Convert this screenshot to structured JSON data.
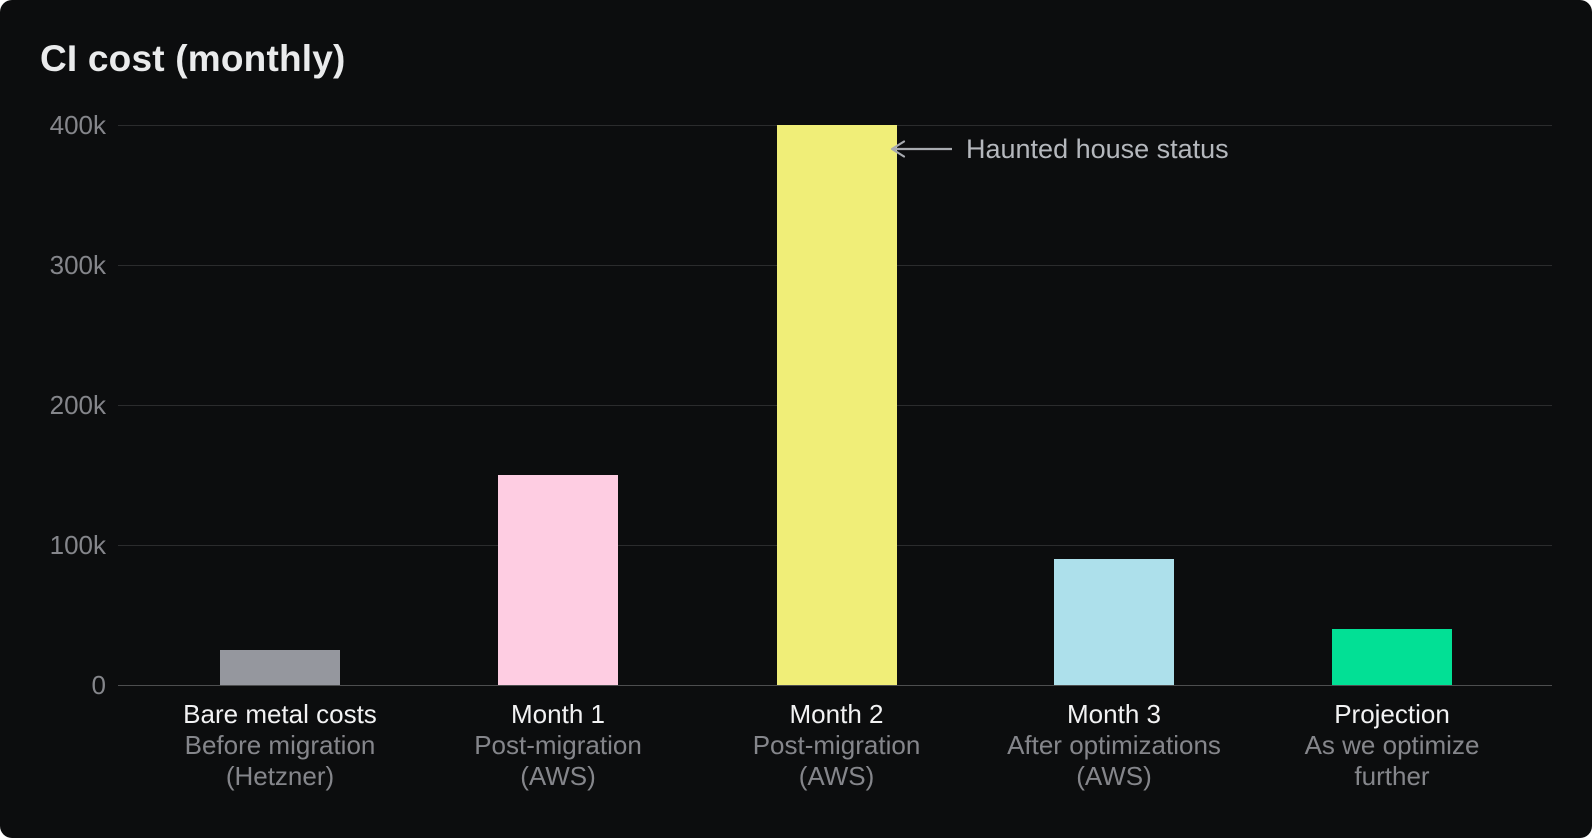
{
  "title": "CI cost (monthly)",
  "annotation": {
    "text": "Haunted house status",
    "icon": "left-arrow-icon",
    "points_to": "Month 2"
  },
  "colors": {
    "card_background": "#0c0d0e",
    "title_text": "#eaebec",
    "axis_tick_text": "#85868b",
    "category_label_text": "#f2f2f3",
    "category_sublabel_text": "#85868b",
    "annotation_text": "#b5b8bd",
    "gridline": "rgba(255,255,255,0.13)",
    "baseline": "rgba(255,255,255,0.27)"
  },
  "chart_data": {
    "type": "bar",
    "title": "CI cost (monthly)",
    "xlabel": "",
    "ylabel": "",
    "ylim": [
      0,
      400000
    ],
    "grid": "horizontal-only",
    "legend": false,
    "categories": [
      "Bare metal costs",
      "Month 1",
      "Month 2",
      "Month 3",
      "Projection"
    ],
    "category_sublabels": [
      [
        "Before migration",
        "(Hetzner)"
      ],
      [
        "Post-migration",
        "(AWS)"
      ],
      [
        "Post-migration",
        "(AWS)"
      ],
      [
        "After optimizations",
        "(AWS)"
      ],
      [
        "As we optimize",
        "further"
      ]
    ],
    "values": [
      25000,
      150000,
      400000,
      90000,
      40000
    ],
    "value_labels": [
      "25k",
      "150k",
      "400k",
      "90k",
      "40k"
    ],
    "bar_colors": [
      "#95979e",
      "#fecde2",
      "#f0ee78",
      "#ade0eb",
      "#02e095"
    ],
    "yticks": [
      {
        "label": "0",
        "value": 0
      },
      {
        "label": "100k",
        "value": 100000
      },
      {
        "label": "200k",
        "value": 200000
      },
      {
        "label": "300k",
        "value": 300000
      },
      {
        "label": "400k",
        "value": 400000
      }
    ],
    "annotation": {
      "text": "Haunted house status",
      "arrow_direction": "left",
      "points_to_category": "Month 2",
      "points_to_value": 400000
    }
  }
}
